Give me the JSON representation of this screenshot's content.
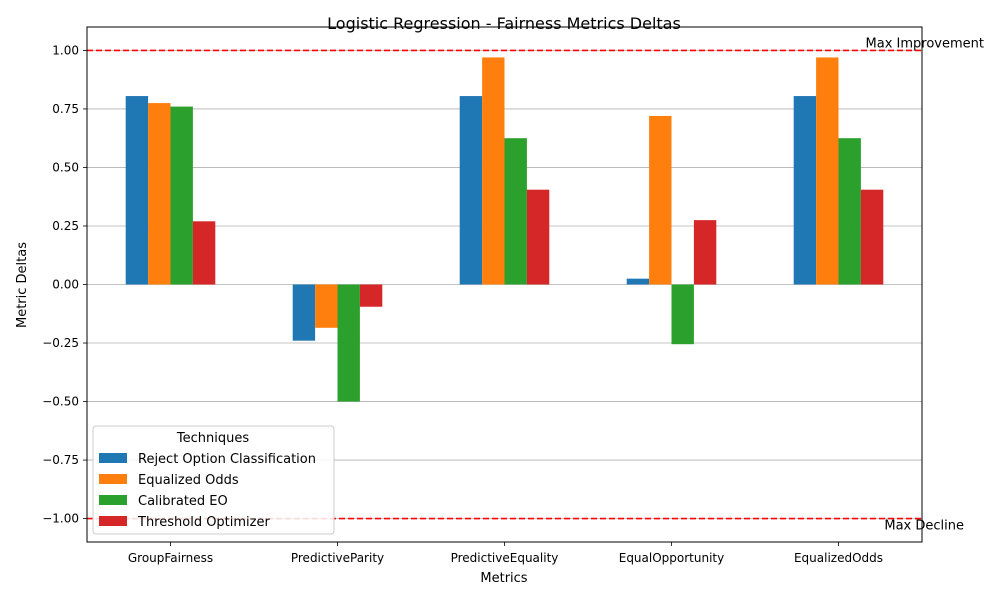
{
  "chart_data": {
    "type": "bar",
    "title": "Logistic Regression - Fairness Metrics Deltas",
    "xlabel": "Metrics",
    "ylabel": "Metric Deltas",
    "categories": [
      "GroupFairness",
      "PredictiveParity",
      "PredictiveEquality",
      "EqualOpportunity",
      "EqualizedOdds"
    ],
    "series": [
      {
        "name": "Reject Option Classification",
        "color": "#1f77b4",
        "values": [
          0.805,
          -0.24,
          0.805,
          0.025,
          0.805
        ]
      },
      {
        "name": "Equalized Odds",
        "color": "#ff7f0e",
        "values": [
          0.775,
          -0.185,
          0.97,
          0.72,
          0.97
        ]
      },
      {
        "name": "Calibrated EO",
        "color": "#2ca02c",
        "values": [
          0.76,
          -0.5,
          0.625,
          -0.255,
          0.625
        ]
      },
      {
        "name": "Threshold Optimizer",
        "color": "#d62728",
        "values": [
          0.27,
          -0.095,
          0.405,
          0.275,
          0.405
        ]
      }
    ],
    "ylim": [
      -1.1,
      1.1
    ],
    "yticks": [
      -1.0,
      -0.75,
      -0.5,
      -0.25,
      0.0,
      0.25,
      0.5,
      0.75,
      1.0
    ],
    "ytick_labels": [
      "−1.00",
      "−0.75",
      "−0.50",
      "−0.25",
      "0.00",
      "0.25",
      "0.50",
      "0.75",
      "1.00"
    ],
    "grid": "y",
    "legend": {
      "title": "Techniques",
      "placement": "lower-left"
    },
    "reference_lines": [
      {
        "value": 1.0,
        "label": "Max Improvement",
        "color": "#ff0000",
        "style": "dashed"
      },
      {
        "value": -1.0,
        "label": "Max Decline",
        "color": "#ff0000",
        "style": "dashed"
      }
    ]
  }
}
